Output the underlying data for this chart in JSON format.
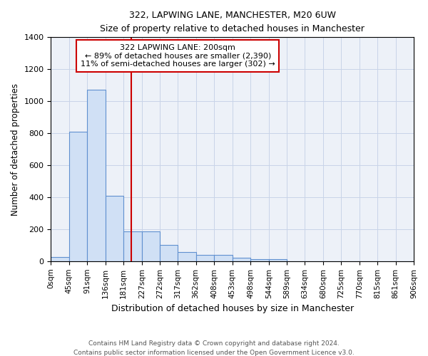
{
  "title": "322, LAPWING LANE, MANCHESTER, M20 6UW",
  "subtitle": "Size of property relative to detached houses in Manchester",
  "xlabel": "Distribution of detached houses by size in Manchester",
  "ylabel": "Number of detached properties",
  "bin_edges": [
    0,
    45,
    91,
    136,
    181,
    227,
    272,
    317,
    362,
    408,
    453,
    498,
    544,
    589,
    634,
    680,
    725,
    770,
    815,
    861,
    906
  ],
  "bar_heights": [
    25,
    810,
    1070,
    410,
    185,
    185,
    100,
    55,
    40,
    40,
    20,
    12,
    12,
    0,
    0,
    0,
    0,
    0,
    0,
    0
  ],
  "bar_color": "#d0e0f5",
  "bar_edge_color": "#6090d0",
  "bar_edge_width": 0.8,
  "grid_color": "#c8d4e8",
  "bg_color": "#edf1f8",
  "red_line_x": 200,
  "red_line_color": "#cc0000",
  "annotation_text": "322 LAPWING LANE: 200sqm\n← 89% of detached houses are smaller (2,390)\n11% of semi-detached houses are larger (302) →",
  "annotation_box_color": "white",
  "annotation_box_edge": "#cc0000",
  "ylim": [
    0,
    1400
  ],
  "yticks": [
    0,
    200,
    400,
    600,
    800,
    1000,
    1200,
    1400
  ],
  "xtick_labels": [
    "0sqm",
    "45sqm",
    "91sqm",
    "136sqm",
    "181sqm",
    "227sqm",
    "272sqm",
    "317sqm",
    "362sqm",
    "408sqm",
    "453sqm",
    "498sqm",
    "544sqm",
    "589sqm",
    "634sqm",
    "680sqm",
    "725sqm",
    "770sqm",
    "815sqm",
    "861sqm",
    "906sqm"
  ],
  "footer_line1": "Contains HM Land Registry data © Crown copyright and database right 2024.",
  "footer_line2": "Contains public sector information licensed under the Open Government Licence v3.0."
}
